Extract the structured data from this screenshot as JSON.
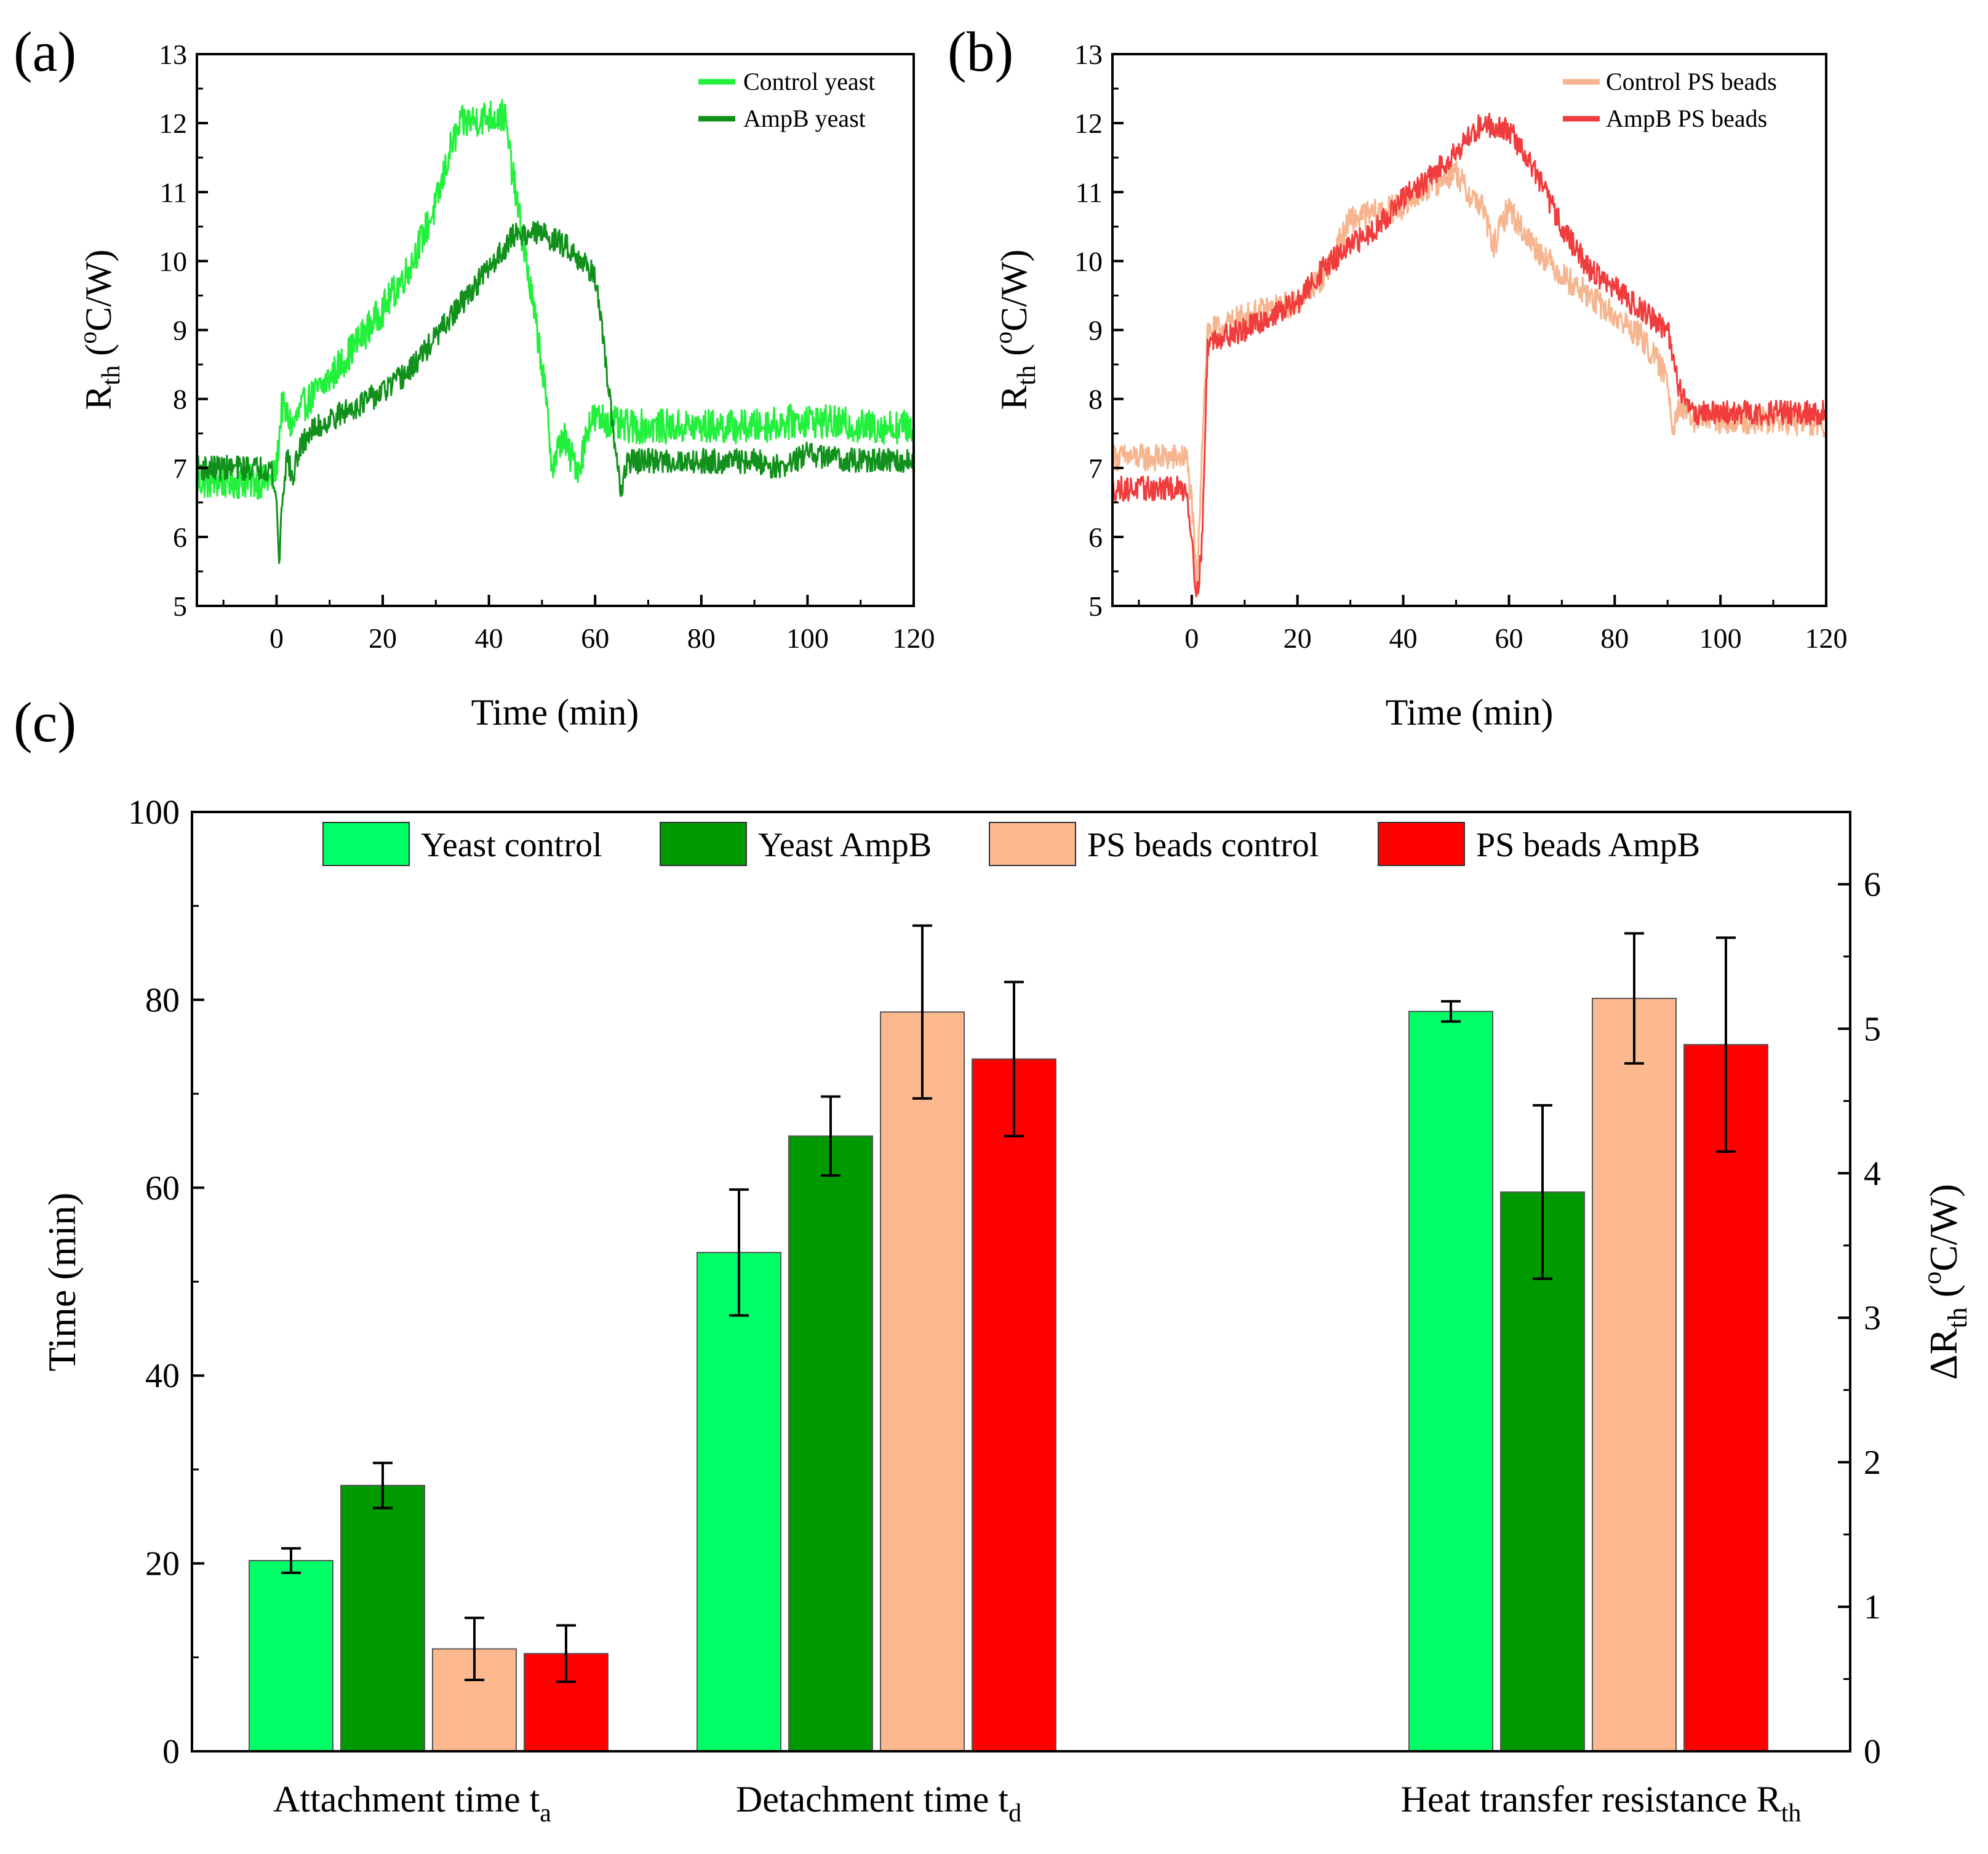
{
  "panels": {
    "a": {
      "label": "(a)"
    },
    "b": {
      "label": "(b)"
    },
    "c": {
      "label": "(c)"
    }
  },
  "colors": {
    "control_yeast": "#22f03c",
    "ampb_yeast": "#11911c",
    "control_ps": "#f6b58e",
    "ampb_ps": "#f03c3c",
    "bar_yeast_control": "#00ff66",
    "bar_yeast_ampb": "#009900",
    "bar_ps_control": "#fcb98f",
    "bar_ps_ampb": "#ff0000"
  },
  "chart_data": [
    {
      "id": "a",
      "type": "line",
      "xlabel": "Time (min)",
      "ylabel": {
        "base": "R",
        "sub": "th",
        "unit_pre": " (",
        "unit_sup": "o",
        "unit_post": "C/W)"
      },
      "xlim": [
        -15,
        120
      ],
      "ylim": [
        5,
        13
      ],
      "xticks": [
        0,
        20,
        40,
        60,
        80,
        100,
        120
      ],
      "yticks": [
        5,
        6,
        7,
        8,
        9,
        10,
        11,
        12,
        13
      ],
      "legend_position": "top-right",
      "series": [
        {
          "name": "Control yeast",
          "color_key": "control_yeast",
          "noise": 0.25,
          "points": [
            [
              -15,
              6.8
            ],
            [
              -1,
              6.8
            ],
            [
              0,
              7.0
            ],
            [
              1,
              7.9
            ],
            [
              3,
              7.6
            ],
            [
              5,
              7.9
            ],
            [
              10,
              8.3
            ],
            [
              15,
              8.8
            ],
            [
              20,
              9.3
            ],
            [
              25,
              9.9
            ],
            [
              30,
              10.8
            ],
            [
              33,
              11.7
            ],
            [
              35,
              12.0
            ],
            [
              40,
              12.1
            ],
            [
              43,
              12.1
            ],
            [
              44,
              11.5
            ],
            [
              45,
              11.0
            ],
            [
              47,
              10.0
            ],
            [
              50,
              8.5
            ],
            [
              52,
              7.0
            ],
            [
              54,
              7.5
            ],
            [
              55,
              7.2
            ],
            [
              57,
              7.0
            ],
            [
              59,
              7.7
            ],
            [
              62,
              7.7
            ],
            [
              65,
              7.6
            ],
            [
              70,
              7.6
            ],
            [
              80,
              7.6
            ],
            [
              90,
              7.6
            ],
            [
              100,
              7.7
            ],
            [
              110,
              7.6
            ],
            [
              120,
              7.6
            ]
          ]
        },
        {
          "name": "AmpB yeast",
          "color_key": "ampb_yeast",
          "noise": 0.18,
          "points": [
            [
              -15,
              7.0
            ],
            [
              -1,
              7.0
            ],
            [
              0,
              6.5
            ],
            [
              0.5,
              5.6
            ],
            [
              1,
              6.5
            ],
            [
              2,
              7.2
            ],
            [
              3,
              6.8
            ],
            [
              4,
              7.2
            ],
            [
              6,
              7.5
            ],
            [
              10,
              7.7
            ],
            [
              15,
              7.9
            ],
            [
              20,
              8.1
            ],
            [
              25,
              8.4
            ],
            [
              30,
              8.9
            ],
            [
              35,
              9.4
            ],
            [
              40,
              9.9
            ],
            [
              45,
              10.4
            ],
            [
              48,
              10.4
            ],
            [
              50,
              10.4
            ],
            [
              55,
              10.2
            ],
            [
              60,
              9.8
            ],
            [
              62,
              8.5
            ],
            [
              63,
              7.8
            ],
            [
              64,
              7.2
            ],
            [
              65,
              6.6
            ],
            [
              66,
              7.1
            ],
            [
              70,
              7.1
            ],
            [
              80,
              7.1
            ],
            [
              90,
              7.1
            ],
            [
              95,
              7.0
            ],
            [
              100,
              7.2
            ],
            [
              110,
              7.1
            ],
            [
              120,
              7.1
            ]
          ]
        }
      ]
    },
    {
      "id": "b",
      "type": "line",
      "xlabel": "Time (min)",
      "ylabel": {
        "base": "R",
        "sub": "th",
        "unit_pre": " (",
        "unit_sup": "o",
        "unit_post": "C/W)"
      },
      "xlim": [
        -15,
        120
      ],
      "ylim": [
        5,
        13
      ],
      "xticks": [
        0,
        20,
        40,
        60,
        80,
        100,
        120
      ],
      "yticks": [
        5,
        6,
        7,
        8,
        9,
        10,
        11,
        12,
        13
      ],
      "legend_position": "top-right",
      "series": [
        {
          "name": "Control PS beads",
          "color_key": "control_ps",
          "noise": 0.2,
          "points": [
            [
              -15,
              7.15
            ],
            [
              -1,
              7.15
            ],
            [
              0,
              6.5
            ],
            [
              1,
              5.2
            ],
            [
              2,
              7.5
            ],
            [
              3,
              9.0
            ],
            [
              5,
              9.0
            ],
            [
              10,
              9.2
            ],
            [
              20,
              9.4
            ],
            [
              25,
              9.8
            ],
            [
              30,
              10.6
            ],
            [
              35,
              10.7
            ],
            [
              40,
              10.8
            ],
            [
              45,
              11.1
            ],
            [
              50,
              11.3
            ],
            [
              52,
              11.0
            ],
            [
              55,
              10.8
            ],
            [
              57,
              10.2
            ],
            [
              60,
              10.8
            ],
            [
              62,
              10.5
            ],
            [
              65,
              10.2
            ],
            [
              70,
              9.8
            ],
            [
              75,
              9.5
            ],
            [
              80,
              9.2
            ],
            [
              85,
              8.9
            ],
            [
              90,
              8.3
            ],
            [
              91,
              7.6
            ],
            [
              92,
              7.9
            ],
            [
              95,
              7.7
            ],
            [
              100,
              7.7
            ],
            [
              110,
              7.7
            ],
            [
              120,
              7.6
            ]
          ]
        },
        {
          "name": "AmpB PS beads",
          "color_key": "ampb_ps",
          "noise": 0.18,
          "points": [
            [
              -15,
              6.7
            ],
            [
              -1,
              6.7
            ],
            [
              0,
              6.0
            ],
            [
              1,
              5.1
            ],
            [
              2,
              6.0
            ],
            [
              3,
              8.8
            ],
            [
              5,
              8.9
            ],
            [
              10,
              9.0
            ],
            [
              20,
              9.4
            ],
            [
              25,
              9.9
            ],
            [
              30,
              10.2
            ],
            [
              35,
              10.5
            ],
            [
              40,
              10.9
            ],
            [
              45,
              11.2
            ],
            [
              50,
              11.6
            ],
            [
              55,
              12.0
            ],
            [
              60,
              11.9
            ],
            [
              65,
              11.3
            ],
            [
              70,
              10.5
            ],
            [
              75,
              9.9
            ],
            [
              80,
              9.6
            ],
            [
              85,
              9.3
            ],
            [
              90,
              9.0
            ],
            [
              92,
              8.2
            ],
            [
              95,
              7.8
            ],
            [
              100,
              7.8
            ],
            [
              110,
              7.8
            ],
            [
              120,
              7.8
            ]
          ]
        }
      ]
    },
    {
      "id": "c",
      "type": "bar",
      "ylabel_left": "Time (min)",
      "ylabel_right": {
        "prefix": "ΔR",
        "sub": "th",
        "unit_pre": " (",
        "unit_sup": "o",
        "unit_post": "C/W)"
      },
      "ylim_left": [
        0,
        100
      ],
      "yticks_left": [
        0,
        20,
        40,
        60,
        80,
        100
      ],
      "ylim_right": [
        0,
        6.5
      ],
      "yticks_right": [
        0,
        1,
        2,
        3,
        4,
        5,
        6
      ],
      "legend_position": "top",
      "series_names": [
        "Yeast control",
        "Yeast AmpB",
        "PS beads control",
        "PS beads AmpB"
      ],
      "series_color_keys": [
        "bar_yeast_control",
        "bar_yeast_ampb",
        "bar_ps_control",
        "bar_ps_ampb"
      ],
      "groups": [
        {
          "label": "Attachment time t",
          "sub": "a",
          "axis": "left",
          "values": [
            20.3,
            28.3,
            10.9,
            10.4
          ],
          "errors": [
            1.3,
            2.4,
            3.3,
            3.0
          ]
        },
        {
          "label": "Detachment time t",
          "sub": "d",
          "axis": "left",
          "values": [
            53.1,
            65.5,
            78.7,
            73.7
          ],
          "errors": [
            6.7,
            4.2,
            9.2,
            8.2
          ]
        },
        {
          "label": "Heat transfer resistance R",
          "sub": "th",
          "axis": "right",
          "values": [
            5.12,
            3.87,
            5.21,
            4.89
          ],
          "errors": [
            0.07,
            0.6,
            0.45,
            0.74
          ]
        }
      ]
    }
  ]
}
